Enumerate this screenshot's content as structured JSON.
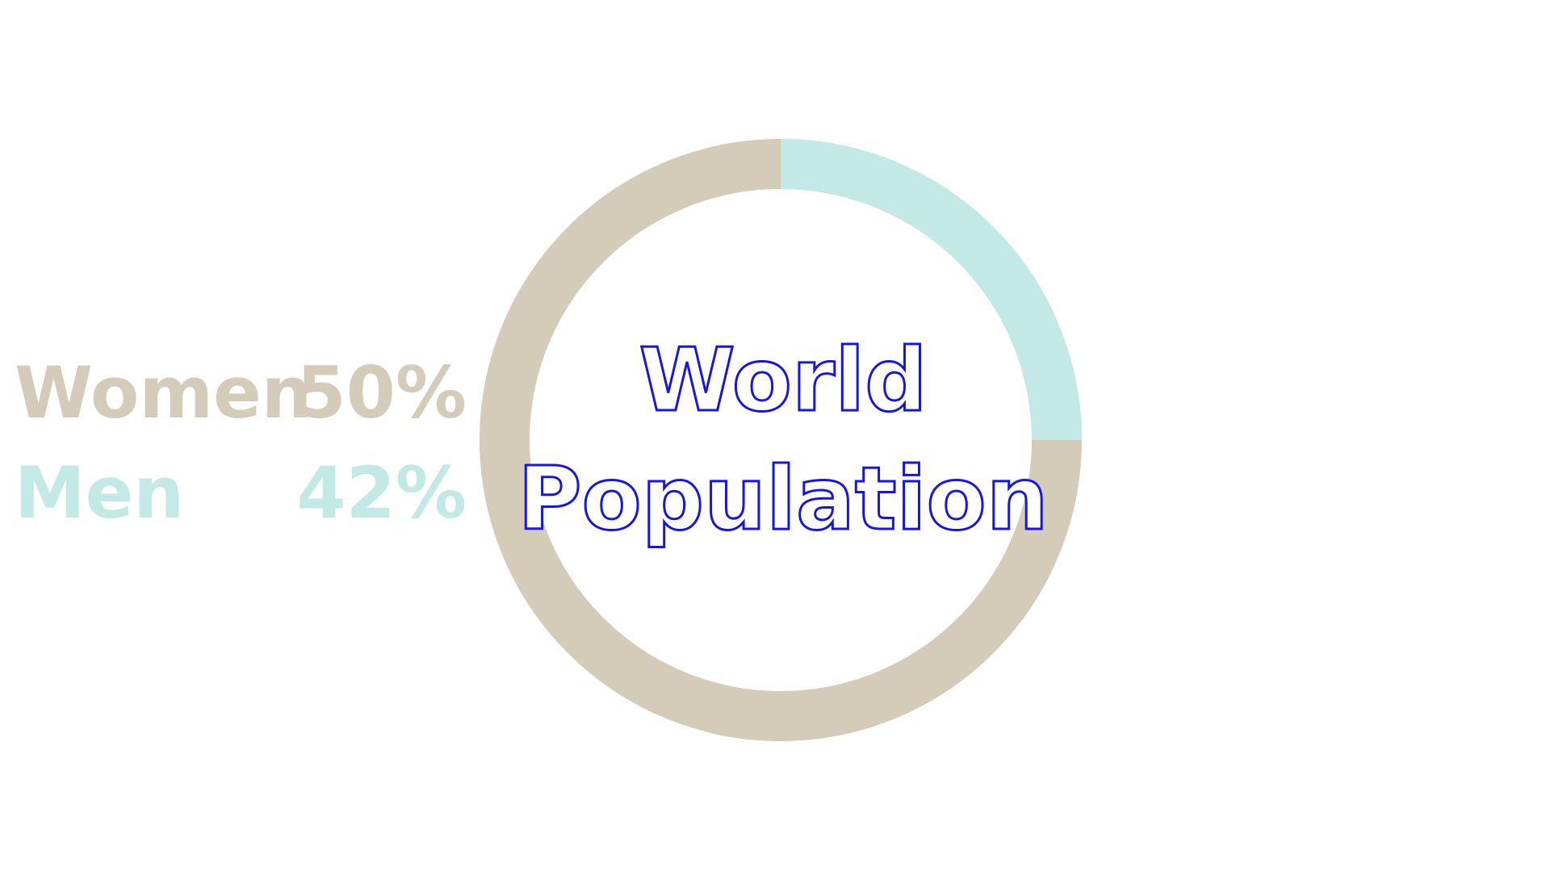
{
  "chart_data": {
    "type": "pie",
    "variant": "donut",
    "title": "World Population",
    "title_lines": [
      "World",
      "Population"
    ],
    "slices": [
      {
        "name": "Women",
        "value": 50,
        "label": "50%",
        "color": "#d4cbb8"
      },
      {
        "name": "Men",
        "value": 42,
        "label": "42%",
        "color": "#c3e9e7"
      }
    ],
    "ring_color": "#d4cbb8",
    "title_color": "#1515e6",
    "legend_placement": "left"
  }
}
